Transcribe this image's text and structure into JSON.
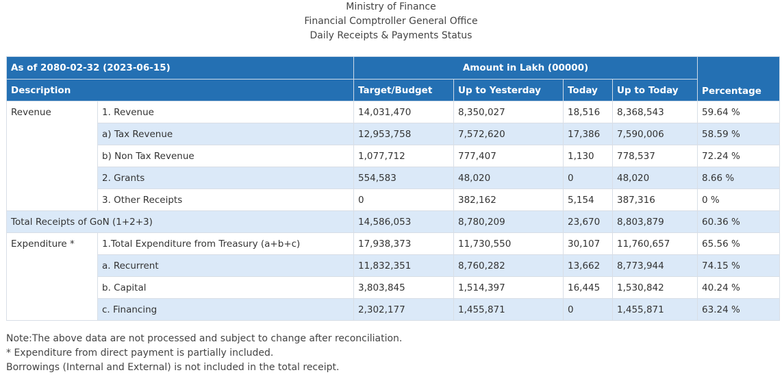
{
  "header": {
    "line1": "Ministry of Finance",
    "line2": "Financial Comptroller General Office",
    "line3": "Daily Receipts & Payments Status"
  },
  "table": {
    "as_of": "As of 2080-02-32 (2023-06-15)",
    "amount_header": "Amount in Lakh (00000)",
    "columns": {
      "description": "Description",
      "target": "Target/Budget",
      "up_to_yesterday": "Up to Yesterday",
      "today": "Today",
      "up_to_today": "Up to Today",
      "percentage": "Percentage"
    },
    "groups": {
      "revenue": "Revenue",
      "total": "Total Receipts of GoN (1+2+3)",
      "expenditure": "Expenditure *"
    },
    "rows": [
      {
        "label": "1. Revenue",
        "target": "14,031,470",
        "yesterday": "8,350,027",
        "today": "18,516",
        "up_to_today": "8,368,543",
        "pct": "59.64 %"
      },
      {
        "label": "a) Tax Revenue",
        "target": "12,953,758",
        "yesterday": "7,572,620",
        "today": "17,386",
        "up_to_today": "7,590,006",
        "pct": "58.59 %"
      },
      {
        "label": "b) Non Tax Revenue",
        "target": "1,077,712",
        "yesterday": "777,407",
        "today": "1,130",
        "up_to_today": "778,537",
        "pct": "72.24 %"
      },
      {
        "label": "2. Grants",
        "target": "554,583",
        "yesterday": "48,020",
        "today": "0",
        "up_to_today": "48,020",
        "pct": "8.66 %"
      },
      {
        "label": "3. Other Receipts",
        "target": "0",
        "yesterday": "382,162",
        "today": "5,154",
        "up_to_today": "387,316",
        "pct": "0 %"
      },
      {
        "label": "",
        "target": "14,586,053",
        "yesterday": "8,780,209",
        "today": "23,670",
        "up_to_today": "8,803,879",
        "pct": "60.36 %"
      },
      {
        "label": "1.Total Expenditure from Treasury (a+b+c)",
        "target": "17,938,373",
        "yesterday": "11,730,550",
        "today": "30,107",
        "up_to_today": "11,760,657",
        "pct": "65.56 %"
      },
      {
        "label": "a. Recurrent",
        "target": "11,832,351",
        "yesterday": "8,760,282",
        "today": "13,662",
        "up_to_today": "8,773,944",
        "pct": "74.15 %"
      },
      {
        "label": "b. Capital",
        "target": "3,803,845",
        "yesterday": "1,514,397",
        "today": "16,445",
        "up_to_today": "1,530,842",
        "pct": "40.24 %"
      },
      {
        "label": "c. Financing",
        "target": "2,302,177",
        "yesterday": "1,455,871",
        "today": "0",
        "up_to_today": "1,455,871",
        "pct": "63.24 %"
      }
    ]
  },
  "notes": {
    "line1": "Note:The above data are not processed and subject to change after reconciliation.",
    "line2": "* Expenditure from direct payment is partially included.",
    "line3": "Borrowings (Internal and External) is not included in the total receipt."
  }
}
